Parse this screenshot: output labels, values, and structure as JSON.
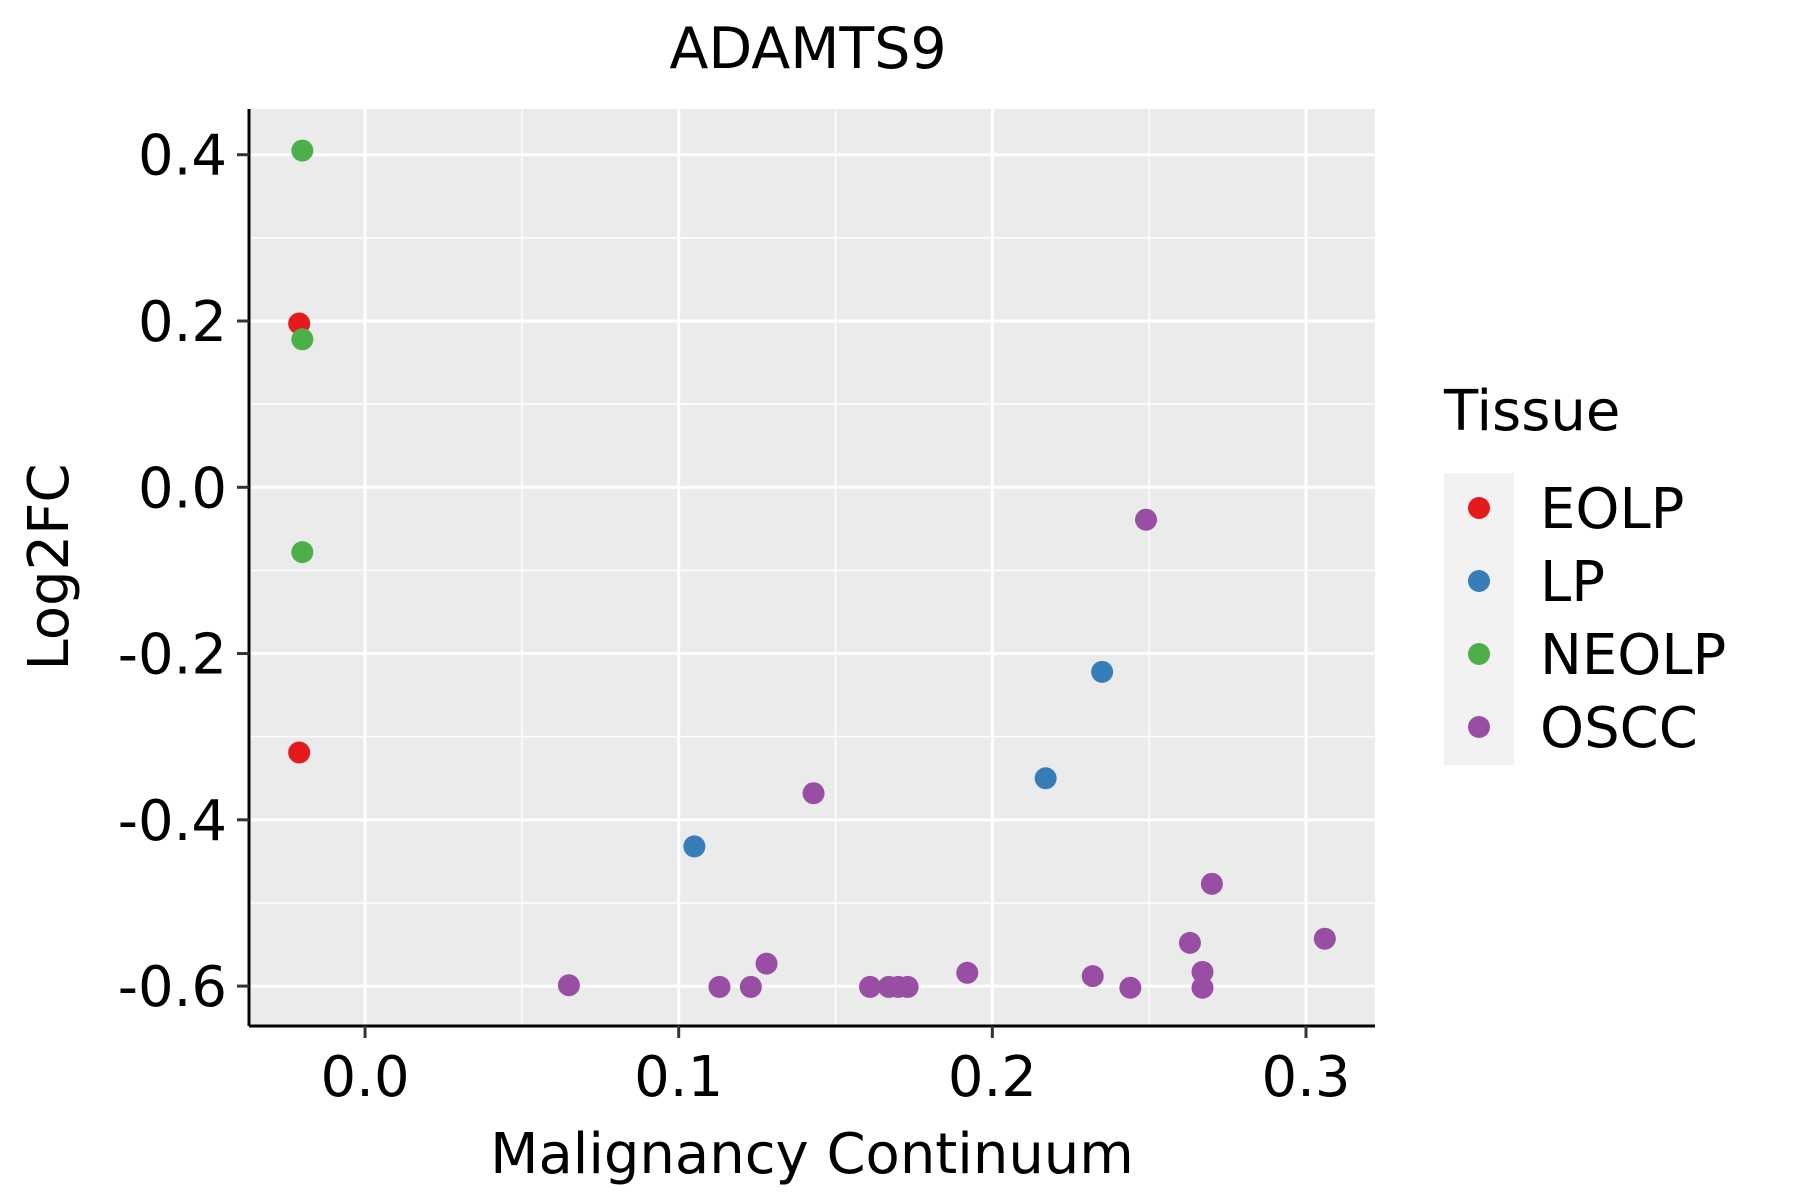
{
  "chart_data": {
    "type": "scatter",
    "title": "ADAMTS9",
    "xlabel": "Malignancy Continuum",
    "ylabel": "Log2FC",
    "xlim": [
      -0.037,
      0.322
    ],
    "ylim": [
      -0.648,
      0.455
    ],
    "x_ticks": [
      0.0,
      0.1,
      0.2,
      0.3
    ],
    "x_tick_labels": [
      "0.0",
      "0.1",
      "0.2",
      "0.3"
    ],
    "y_ticks": [
      -0.6,
      -0.4,
      -0.2,
      0.0,
      0.2,
      0.4
    ],
    "y_tick_labels": [
      "-0.6",
      "-0.4",
      "-0.2",
      "0.0",
      "0.2",
      "0.4"
    ],
    "grid": true,
    "legend": {
      "title": "Tissue",
      "position": "right"
    },
    "series": [
      {
        "name": "EOLP",
        "color": "#E41A1C",
        "points": [
          {
            "x": -0.021,
            "y": 0.197
          },
          {
            "x": -0.021,
            "y": -0.319
          }
        ]
      },
      {
        "name": "LP",
        "color": "#377EB8",
        "points": [
          {
            "x": 0.105,
            "y": -0.432
          },
          {
            "x": 0.217,
            "y": -0.35
          },
          {
            "x": 0.235,
            "y": -0.222
          }
        ]
      },
      {
        "name": "NEOLP",
        "color": "#4DAF4A",
        "points": [
          {
            "x": -0.02,
            "y": 0.405
          },
          {
            "x": -0.02,
            "y": 0.178
          },
          {
            "x": -0.02,
            "y": -0.078
          }
        ]
      },
      {
        "name": "OSCC",
        "color": "#984EA3",
        "points": [
          {
            "x": 0.065,
            "y": -0.599
          },
          {
            "x": 0.113,
            "y": -0.601
          },
          {
            "x": 0.123,
            "y": -0.601
          },
          {
            "x": 0.128,
            "y": -0.573
          },
          {
            "x": 0.143,
            "y": -0.368
          },
          {
            "x": 0.161,
            "y": -0.601
          },
          {
            "x": 0.167,
            "y": -0.601
          },
          {
            "x": 0.17,
            "y": -0.601
          },
          {
            "x": 0.173,
            "y": -0.601
          },
          {
            "x": 0.192,
            "y": -0.584
          },
          {
            "x": 0.232,
            "y": -0.588
          },
          {
            "x": 0.244,
            "y": -0.602
          },
          {
            "x": 0.249,
            "y": -0.039
          },
          {
            "x": 0.263,
            "y": -0.548
          },
          {
            "x": 0.267,
            "y": -0.583
          },
          {
            "x": 0.267,
            "y": -0.602
          },
          {
            "x": 0.27,
            "y": -0.477
          },
          {
            "x": 0.306,
            "y": -0.543
          }
        ]
      }
    ]
  }
}
